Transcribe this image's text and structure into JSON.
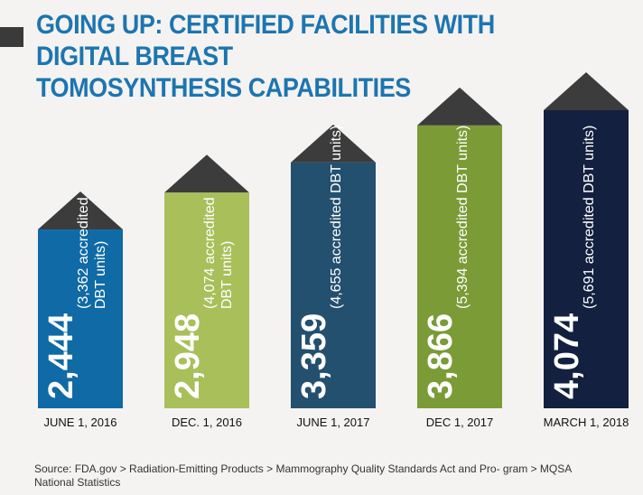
{
  "title_lines": [
    "GOING UP: CERTIFIED FACILITIES WITH DIGITAL BREAST",
    "TOMOSYNTHESIS CAPABILITIES"
  ],
  "chart_data": {
    "type": "bar",
    "categories": [
      "JUNE 1, 2016",
      "DEC. 1, 2016",
      "JUNE 1, 2017",
      "DEC 1, 2017",
      "MARCH 1, 2018"
    ],
    "values": [
      2444,
      2948,
      3359,
      3866,
      4074
    ],
    "value_labels": [
      "2,444",
      "2,948",
      "3,359",
      "3,866",
      "4,074"
    ],
    "sublabels": [
      [
        "(3,362 accredited",
        "DBT units)"
      ],
      [
        "(4,074 accredited",
        "DBT units)"
      ],
      [
        "(4,655 accredited DBT units)"
      ],
      [
        "(5,394 accredited DBT units)"
      ],
      [
        "(5,691 accredited DBT units)"
      ]
    ],
    "dbt_units": [
      3362,
      4074,
      4655,
      5394,
      5691
    ],
    "colors": [
      "#0f6aa5",
      "#a9bf5a",
      "#23506e",
      "#7b9b36",
      "#13203f"
    ],
    "roof_color": "#3c3c3c",
    "label_color": "#ffffff"
  },
  "source": "Source: FDA.gov > Radiation-Emitting Products > Mammography Quality Standards Act and Pro- gram > MQSA National Statistics"
}
